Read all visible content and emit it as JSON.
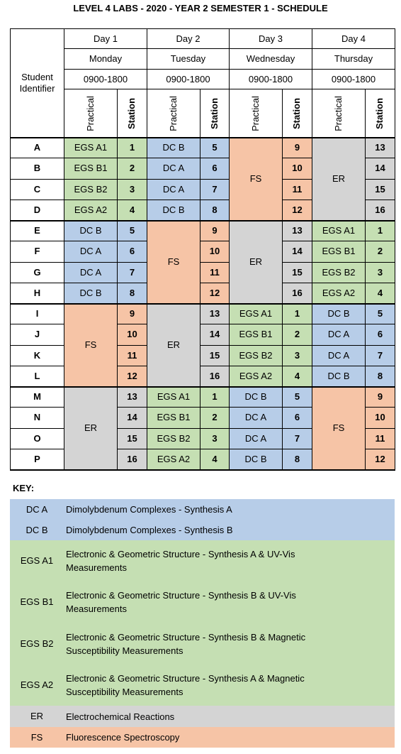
{
  "title": "LEVEL 4 LABS - 2020 - YEAR 2 SEMESTER 1 - SCHEDULE",
  "table": {
    "header": {
      "student_identifier": "Student Identifier",
      "days": [
        {
          "day": "Day 1",
          "weekday": "Monday",
          "time": "0900-1800",
          "practical": "Practical",
          "station": "Station"
        },
        {
          "day": "Day 2",
          "weekday": "Tuesday",
          "time": "0900-1800",
          "practical": "Practical",
          "station": "Station"
        },
        {
          "day": "Day 3",
          "weekday": "Wednesday",
          "time": "0900-1800",
          "practical": "Practical",
          "station": "Station"
        },
        {
          "day": "Day 4",
          "weekday": "Thursday",
          "time": "0900-1800",
          "practical": "Practical",
          "station": "Station"
        }
      ]
    },
    "groups": [
      {
        "students": [
          "A",
          "B",
          "C",
          "D"
        ],
        "days": [
          {
            "practical": [
              "EGS A1",
              "EGS B1",
              "EGS B2",
              "EGS A2"
            ],
            "stations": [
              1,
              2,
              3,
              4
            ]
          },
          {
            "practical": [
              "DC B",
              "DC A",
              "DC A",
              "DC B"
            ],
            "stations": [
              5,
              6,
              7,
              8
            ]
          },
          {
            "practical": "FS",
            "stations": [
              9,
              10,
              11,
              12
            ]
          },
          {
            "practical": "ER",
            "stations": [
              13,
              14,
              15,
              16
            ]
          }
        ]
      },
      {
        "students": [
          "E",
          "F",
          "G",
          "H"
        ],
        "days": [
          {
            "practical": [
              "DC B",
              "DC A",
              "DC A",
              "DC B"
            ],
            "stations": [
              5,
              6,
              7,
              8
            ]
          },
          {
            "practical": "FS",
            "stations": [
              9,
              10,
              11,
              12
            ]
          },
          {
            "practical": "ER",
            "stations": [
              13,
              14,
              15,
              16
            ]
          },
          {
            "practical": [
              "EGS A1",
              "EGS B1",
              "EGS B2",
              "EGS A2"
            ],
            "stations": [
              1,
              2,
              3,
              4
            ]
          }
        ]
      },
      {
        "students": [
          "I",
          "J",
          "K",
          "L"
        ],
        "days": [
          {
            "practical": "FS",
            "stations": [
              9,
              10,
              11,
              12
            ]
          },
          {
            "practical": "ER",
            "stations": [
              13,
              14,
              15,
              16
            ]
          },
          {
            "practical": [
              "EGS A1",
              "EGS B1",
              "EGS B2",
              "EGS A2"
            ],
            "stations": [
              1,
              2,
              3,
              4
            ]
          },
          {
            "practical": [
              "DC B",
              "DC A",
              "DC A",
              "DC B"
            ],
            "stations": [
              5,
              6,
              7,
              8
            ]
          }
        ]
      },
      {
        "students": [
          "M",
          "N",
          "O",
          "P"
        ],
        "days": [
          {
            "practical": "ER",
            "stations": [
              13,
              14,
              15,
              16
            ]
          },
          {
            "practical": [
              "EGS A1",
              "EGS B1",
              "EGS B2",
              "EGS A2"
            ],
            "stations": [
              1,
              2,
              3,
              4
            ]
          },
          {
            "practical": [
              "DC B",
              "DC A",
              "DC A",
              "DC B"
            ],
            "stations": [
              5,
              6,
              7,
              8
            ]
          },
          {
            "practical": "FS",
            "stations": [
              9,
              10,
              11,
              12
            ]
          }
        ]
      }
    ]
  },
  "key": {
    "title": "KEY:",
    "entries": [
      {
        "code": "DC A",
        "description": "Dimolybdenum Complexes - Synthesis A",
        "color": "#b7cde8"
      },
      {
        "code": "DC B",
        "description": "Dimolybdenum Complexes - Synthesis B",
        "color": "#b7cde8"
      },
      {
        "code": "EGS A1",
        "description": "Electronic & Geometric Structure - Synthesis A & UV-Vis Measurements",
        "color": "#c5dfb3"
      },
      {
        "code": "EGS B1",
        "description": "Electronic & Geometric Structure - Synthesis B & UV-Vis Measurements",
        "color": "#c5dfb3"
      },
      {
        "code": "EGS B2",
        "description": "Electronic & Geometric Structure - Synthesis B & Magnetic Susceptibility Measurements",
        "color": "#c5dfb3"
      },
      {
        "code": "EGS A2",
        "description": "Electronic & Geometric Structure - Synthesis A & Magnetic Susceptibility Measurements",
        "color": "#c5dfb3"
      },
      {
        "code": "ER",
        "description": "Electrochemical Reactions",
        "color": "#d4d4d4"
      },
      {
        "code": "FS",
        "description": "Fluorescence Spectroscopy",
        "color": "#f6c4a6"
      }
    ]
  }
}
